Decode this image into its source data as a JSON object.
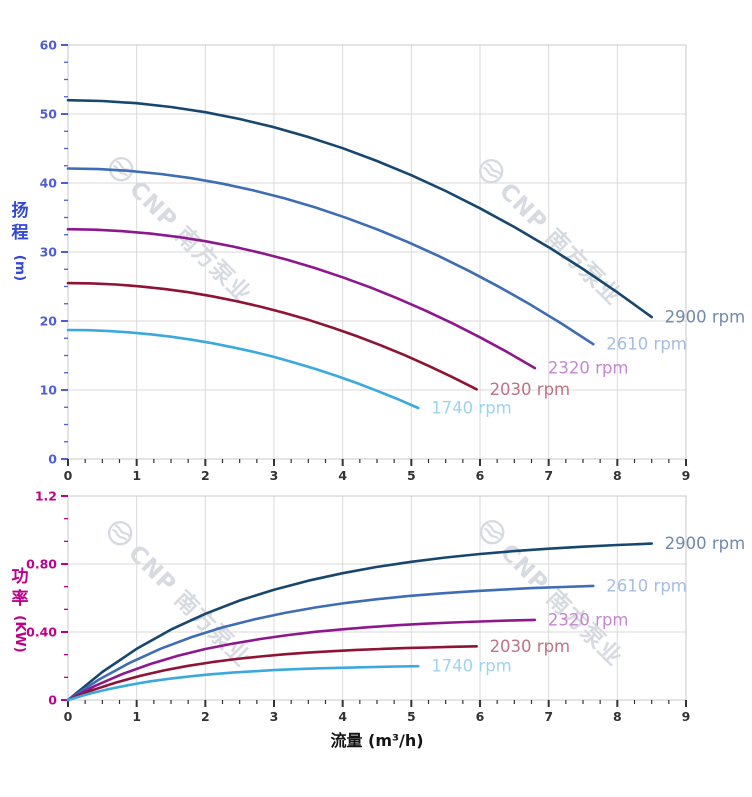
{
  "page": {
    "background": "#ffffff"
  },
  "watermark": {
    "text": "CNP 南方泵业",
    "color": "#d3d7de",
    "logo": "cnp-circle-wave-logo"
  },
  "style": {
    "grid_color": "#dadada",
    "border_color": "#c9c9cf",
    "x_axis_color": "#333333",
    "x_title_color": "#141414"
  },
  "chart_data": [
    {
      "type": "line",
      "title": "",
      "ylabel_cn": "扬程",
      "ylabel_unit": "(m)",
      "ylabel": "扬程 (m)",
      "xlabel": "",
      "xlim": [
        0,
        9
      ],
      "ylim": [
        0,
        60
      ],
      "grid": true,
      "legend_position": "curve-end-labels",
      "axis_color": "#4f5ed8",
      "title_color": "#3348d4",
      "x_minor_step": 0.25,
      "y_minor_step": 2.5,
      "x_ticks": [
        {
          "v": 0,
          "t": "0"
        },
        {
          "v": 1,
          "t": "1"
        },
        {
          "v": 2,
          "t": "2"
        },
        {
          "v": 3,
          "t": "3"
        },
        {
          "v": 4,
          "t": "4"
        },
        {
          "v": 5,
          "t": "5"
        },
        {
          "v": 6,
          "t": "6"
        },
        {
          "v": 7,
          "t": "7"
        },
        {
          "v": 8,
          "t": "8"
        },
        {
          "v": 9,
          "t": "9"
        }
      ],
      "y_ticks": [
        {
          "v": 0,
          "t": "0"
        },
        {
          "v": 10,
          "t": "10"
        },
        {
          "v": 20,
          "t": "20"
        },
        {
          "v": 30,
          "t": "30"
        },
        {
          "v": 40,
          "t": "40"
        },
        {
          "v": 50,
          "t": "50"
        },
        {
          "v": 60,
          "t": "60"
        }
      ],
      "series": [
        {
          "name": "2900 rpm",
          "color": "#17476e",
          "label_color": "#6f8aab",
          "points": [
            [
              0,
              52
            ],
            [
              0.5,
              51.89
            ],
            [
              1,
              51.57
            ],
            [
              1.5,
              51.02
            ],
            [
              2,
              50.26
            ],
            [
              2.5,
              49.28
            ],
            [
              3,
              48.09
            ],
            [
              3.5,
              46.67
            ],
            [
              4,
              45.04
            ],
            [
              4.5,
              43.19
            ],
            [
              5,
              41.13
            ],
            [
              5.5,
              38.84
            ],
            [
              6,
              36.34
            ],
            [
              6.5,
              33.62
            ],
            [
              7,
              30.69
            ],
            [
              7.5,
              27.53
            ],
            [
              8,
              24.16
            ],
            [
              8.5,
              20.57
            ]
          ]
        },
        {
          "name": "2610 rpm",
          "color": "#3e6db5",
          "label_color": "#a6bce2",
          "points": [
            [
              0,
              42.1
            ],
            [
              0.45,
              42.01
            ],
            [
              0.9,
              41.75
            ],
            [
              1.35,
              41.31
            ],
            [
              1.8,
              40.69
            ],
            [
              2.25,
              39.9
            ],
            [
              2.7,
              38.93
            ],
            [
              3.15,
              37.78
            ],
            [
              3.6,
              36.46
            ],
            [
              4.05,
              34.96
            ],
            [
              4.5,
              33.29
            ],
            [
              4.95,
              31.44
            ],
            [
              5.4,
              29.41
            ],
            [
              5.85,
              27.21
            ],
            [
              6.3,
              24.83
            ],
            [
              6.75,
              22.28
            ],
            [
              7.2,
              19.55
            ],
            [
              7.65,
              16.64
            ]
          ]
        },
        {
          "name": "2320 rpm",
          "color": "#8e178e",
          "label_color": "#c587cf",
          "points": [
            [
              0,
              33.3
            ],
            [
              0.4,
              33.23
            ],
            [
              0.8,
              33.02
            ],
            [
              1.2,
              32.67
            ],
            [
              1.6,
              32.19
            ],
            [
              2,
              31.56
            ],
            [
              2.4,
              30.79
            ],
            [
              2.8,
              29.89
            ],
            [
              3.2,
              28.85
            ],
            [
              3.6,
              27.66
            ],
            [
              4,
              26.34
            ],
            [
              4.4,
              24.88
            ],
            [
              4.8,
              23.28
            ],
            [
              5.2,
              21.54
            ],
            [
              5.6,
              19.66
            ],
            [
              6,
              17.64
            ],
            [
              6.4,
              15.48
            ],
            [
              6.8,
              13.18
            ]
          ]
        },
        {
          "name": "2030 rpm",
          "color": "#8e1334",
          "label_color": "#bd7386",
          "points": [
            [
              0,
              25.5
            ],
            [
              0.35,
              25.45
            ],
            [
              0.7,
              25.29
            ],
            [
              1.05,
              25.02
            ],
            [
              1.4,
              24.65
            ],
            [
              1.75,
              24.17
            ],
            [
              2.1,
              23.58
            ],
            [
              2.45,
              22.89
            ],
            [
              2.8,
              22.09
            ],
            [
              3.15,
              21.18
            ],
            [
              3.5,
              20.17
            ],
            [
              3.85,
              19.05
            ],
            [
              4.2,
              17.83
            ],
            [
              4.55,
              16.49
            ],
            [
              4.9,
              15.06
            ],
            [
              5.25,
              13.51
            ],
            [
              5.6,
              11.86
            ],
            [
              5.95,
              10.1
            ]
          ]
        },
        {
          "name": "1740 rpm",
          "color": "#3ba9de",
          "label_color": "#9fd2f0",
          "points": [
            [
              0,
              18.7
            ],
            [
              0.3,
              18.66
            ],
            [
              0.6,
              18.54
            ],
            [
              0.9,
              18.35
            ],
            [
              1.2,
              18.07
            ],
            [
              1.5,
              17.72
            ],
            [
              1.8,
              17.29
            ],
            [
              2.1,
              16.78
            ],
            [
              2.4,
              16.19
            ],
            [
              2.7,
              15.53
            ],
            [
              3,
              14.79
            ],
            [
              3.3,
              13.96
            ],
            [
              3.6,
              13.06
            ],
            [
              3.9,
              12.08
            ],
            [
              4.2,
              11.03
            ],
            [
              4.5,
              9.89
            ],
            [
              4.8,
              8.68
            ],
            [
              5.1,
              7.39
            ]
          ]
        }
      ]
    },
    {
      "type": "line",
      "title": "",
      "ylabel_cn": "功率",
      "ylabel_unit": "(KW)",
      "ylabel": "功率 (KW)",
      "xlabel": "流量 (m³/h)",
      "xlim": [
        0,
        9
      ],
      "ylim": [
        0,
        1.2
      ],
      "grid": true,
      "legend_position": "curve-end-labels",
      "axis_color": "#bf0089",
      "title_color": "#bf0089",
      "x_minor_step": 0.25,
      "y_minor_step": 0.13333,
      "x_ticks": [
        {
          "v": 0,
          "t": "0"
        },
        {
          "v": 1,
          "t": "1"
        },
        {
          "v": 2,
          "t": "2"
        },
        {
          "v": 3,
          "t": "3"
        },
        {
          "v": 4,
          "t": "4"
        },
        {
          "v": 5,
          "t": "5"
        },
        {
          "v": 6,
          "t": "6"
        },
        {
          "v": 7,
          "t": "7"
        },
        {
          "v": 8,
          "t": "8"
        },
        {
          "v": 9,
          "t": "9"
        }
      ],
      "y_ticks": [
        {
          "v": 0,
          "t": "0"
        },
        {
          "v": 0.4,
          "t": "0.40"
        },
        {
          "v": 0.8,
          "t": "0.80"
        },
        {
          "v": 1.2,
          "t": "1.2"
        }
      ],
      "series": [
        {
          "name": "2900 rpm",
          "color": "#17476e",
          "label_color": "#6f8aab",
          "points": [
            [
              0,
              0
            ],
            [
              0.5,
              0.165
            ],
            [
              1,
              0.301
            ],
            [
              1.5,
              0.414
            ],
            [
              2,
              0.507
            ],
            [
              2.5,
              0.585
            ],
            [
              3,
              0.649
            ],
            [
              3.5,
              0.702
            ],
            [
              4,
              0.746
            ],
            [
              4.5,
              0.783
            ],
            [
              5,
              0.813
            ],
            [
              5.5,
              0.838
            ],
            [
              6,
              0.859
            ],
            [
              6.5,
              0.876
            ],
            [
              7,
              0.89
            ],
            [
              7.5,
              0.902
            ],
            [
              8,
              0.912
            ],
            [
              8.5,
              0.92
            ]
          ]
        },
        {
          "name": "2610 rpm",
          "color": "#3e6db5",
          "label_color": "#a6bce2",
          "points": [
            [
              0,
              0
            ],
            [
              0.45,
              0.12
            ],
            [
              0.9,
              0.219
            ],
            [
              1.35,
              0.302
            ],
            [
              1.8,
              0.37
            ],
            [
              2.25,
              0.427
            ],
            [
              2.7,
              0.473
            ],
            [
              3.15,
              0.512
            ],
            [
              3.6,
              0.544
            ],
            [
              4.05,
              0.571
            ],
            [
              4.5,
              0.593
            ],
            [
              4.95,
              0.611
            ],
            [
              5.4,
              0.626
            ],
            [
              5.85,
              0.639
            ],
            [
              6.3,
              0.649
            ],
            [
              6.75,
              0.658
            ],
            [
              7.2,
              0.665
            ],
            [
              7.65,
              0.671
            ]
          ]
        },
        {
          "name": "2320 rpm",
          "color": "#8e178e",
          "label_color": "#c587cf",
          "points": [
            [
              0,
              0
            ],
            [
              0.4,
              0.084
            ],
            [
              0.8,
              0.154
            ],
            [
              1.2,
              0.212
            ],
            [
              1.6,
              0.26
            ],
            [
              2,
              0.3
            ],
            [
              2.4,
              0.332
            ],
            [
              2.8,
              0.359
            ],
            [
              3.2,
              0.382
            ],
            [
              3.6,
              0.401
            ],
            [
              4,
              0.416
            ],
            [
              4.4,
              0.429
            ],
            [
              4.8,
              0.44
            ],
            [
              5.2,
              0.449
            ],
            [
              5.6,
              0.456
            ],
            [
              6,
              0.462
            ],
            [
              6.4,
              0.467
            ],
            [
              6.8,
              0.471
            ]
          ]
        },
        {
          "name": "2030 rpm",
          "color": "#8e1334",
          "label_color": "#bd7386",
          "points": [
            [
              0,
              0
            ],
            [
              0.35,
              0.057
            ],
            [
              0.7,
              0.103
            ],
            [
              1.05,
              0.142
            ],
            [
              1.4,
              0.174
            ],
            [
              1.75,
              0.201
            ],
            [
              2.1,
              0.223
            ],
            [
              2.45,
              0.241
            ],
            [
              2.8,
              0.256
            ],
            [
              3.15,
              0.269
            ],
            [
              3.5,
              0.279
            ],
            [
              3.85,
              0.287
            ],
            [
              4.2,
              0.295
            ],
            [
              4.55,
              0.3
            ],
            [
              4.9,
              0.305
            ],
            [
              5.25,
              0.309
            ],
            [
              5.6,
              0.313
            ],
            [
              5.95,
              0.316
            ]
          ]
        },
        {
          "name": "1740 rpm",
          "color": "#3ba9de",
          "label_color": "#9fd2f0",
          "points": [
            [
              0,
              0
            ],
            [
              0.3,
              0.036
            ],
            [
              0.6,
              0.065
            ],
            [
              0.9,
              0.089
            ],
            [
              1.2,
              0.11
            ],
            [
              1.5,
              0.126
            ],
            [
              1.8,
              0.14
            ],
            [
              2.1,
              0.152
            ],
            [
              2.4,
              0.161
            ],
            [
              2.7,
              0.169
            ],
            [
              3,
              0.176
            ],
            [
              3.3,
              0.181
            ],
            [
              3.6,
              0.186
            ],
            [
              3.9,
              0.189
            ],
            [
              4.2,
              0.192
            ],
            [
              4.5,
              0.195
            ],
            [
              4.8,
              0.197
            ],
            [
              5.1,
              0.199
            ]
          ]
        }
      ]
    }
  ]
}
